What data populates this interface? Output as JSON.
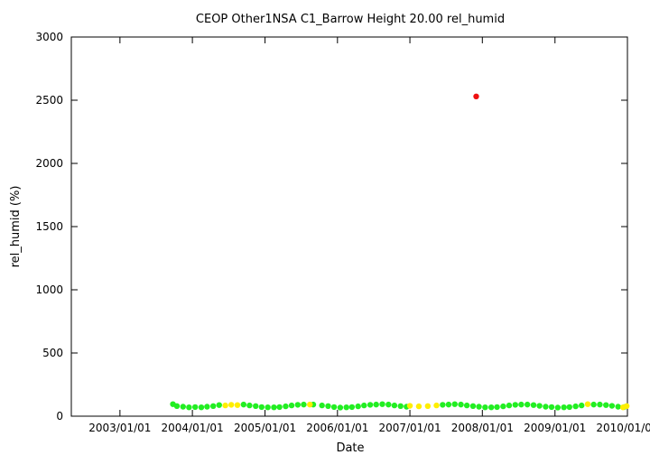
{
  "chart_data": {
    "type": "scatter",
    "title": "CEOP Other1NSA C1_Barrow Height 20.00 rel_humid",
    "xlabel": "Date",
    "ylabel": "rel_humid (%)",
    "xlim": [
      "2002/05/01",
      "2010/01/01"
    ],
    "ylim": [
      0,
      3000
    ],
    "x_ticks": [
      "2003/01/01",
      "2004/01/01",
      "2005/01/01",
      "2006/01/01",
      "2007/01/01",
      "2008/01/01",
      "2009/01/01",
      "2010/01/01"
    ],
    "y_ticks": [
      0,
      500,
      1000,
      1500,
      2000,
      2500,
      3000
    ],
    "grid": false,
    "legend": "none",
    "colors": {
      "good": "#22ee22",
      "questionable": "#ffee00",
      "bad": "#ee1111"
    },
    "series": [
      {
        "color": "#22ee22",
        "x": [
          "2003/09/25",
          "2003/10/15",
          "2003/11/15",
          "2003/12/15",
          "2004/01/15",
          "2004/02/15",
          "2004/03/15",
          "2004/04/15",
          "2004/05/15",
          "2004/09/15",
          "2004/10/15",
          "2004/11/15",
          "2004/12/15",
          "2005/01/15",
          "2005/02/15",
          "2005/03/15",
          "2005/04/15",
          "2005/05/15",
          "2005/06/15",
          "2005/07/15",
          "2005/09/01",
          "2005/10/15",
          "2005/11/15",
          "2005/12/15",
          "2006/01/15",
          "2006/02/15",
          "2006/03/15",
          "2006/04/15",
          "2006/05/15",
          "2006/06/15",
          "2006/07/15",
          "2006/08/15",
          "2006/09/15",
          "2006/10/15",
          "2006/11/15",
          "2006/12/15",
          "2007/06/15",
          "2007/07/15",
          "2007/08/15",
          "2007/09/15",
          "2007/10/15",
          "2007/11/15",
          "2007/12/15",
          "2008/01/15",
          "2008/02/15",
          "2008/03/15",
          "2008/04/15",
          "2008/05/15",
          "2008/06/15",
          "2008/07/15",
          "2008/08/15",
          "2008/09/15",
          "2008/10/15",
          "2008/11/15",
          "2008/12/15",
          "2009/01/15",
          "2009/02/15",
          "2009/03/15",
          "2009/04/15",
          "2009/05/15",
          "2009/07/15",
          "2009/08/15",
          "2009/09/15",
          "2009/10/15",
          "2009/11/15",
          "2009/12/15"
        ],
        "y": [
          95,
          80,
          75,
          70,
          72,
          70,
          75,
          80,
          88,
          92,
          85,
          80,
          72,
          70,
          70,
          72,
          78,
          85,
          90,
          92,
          92,
          85,
          80,
          72,
          68,
          70,
          72,
          78,
          85,
          90,
          92,
          95,
          92,
          85,
          80,
          75,
          90,
          92,
          95,
          92,
          85,
          80,
          75,
          70,
          70,
          72,
          78,
          85,
          90,
          92,
          92,
          88,
          82,
          75,
          72,
          68,
          70,
          72,
          78,
          85,
          92,
          92,
          88,
          82,
          75,
          72
        ]
      },
      {
        "color": "#ffee00",
        "x": [
          "2004/06/15",
          "2004/07/15",
          "2004/08/15",
          "2005/08/15",
          "2007/01/01",
          "2007/02/15",
          "2007/04/01",
          "2007/05/15",
          "2009/06/15",
          "2009/12/10",
          "2009/12/28"
        ],
        "y": [
          85,
          90,
          88,
          92,
          82,
          78,
          80,
          85,
          95,
          70,
          80
        ]
      },
      {
        "color": "#ee1111",
        "x": [
          "2007/12/01"
        ],
        "y": [
          2530
        ]
      }
    ]
  }
}
